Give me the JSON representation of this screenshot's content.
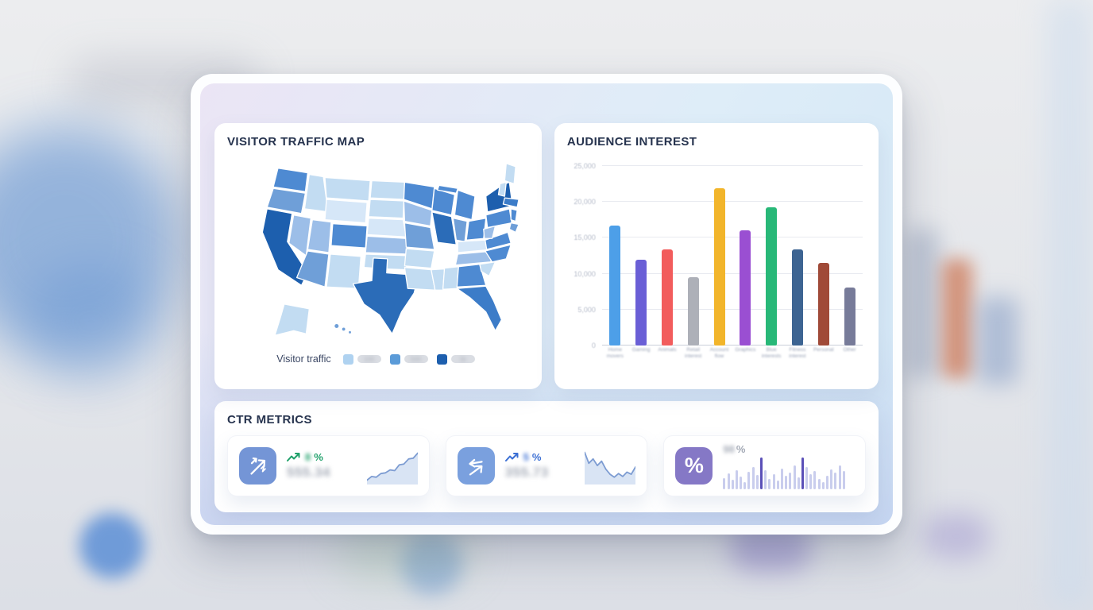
{
  "accent_colors": {
    "modal_gradient_start": "#EBE5F5",
    "modal_gradient_end": "#C9D5F0",
    "card_bg": "#FFFFFF"
  },
  "panels": {
    "traffic_map": {
      "title": "VISITOR TRAFFIC MAP",
      "legend": {
        "label": "Visitor traffic",
        "labels_blurred": true,
        "items": [
          {
            "color": "#AFD2F0",
            "label": "100"
          },
          {
            "color": "#5B9BD8",
            "label": "500"
          },
          {
            "color": "#1D5FAE",
            "label": "1k"
          }
        ]
      }
    },
    "audience": {
      "title": "AUDIENCE INTEREST"
    },
    "ctr": {
      "title": "CTR METRICS",
      "cards": [
        {
          "icon": "trend-arrows-up-icon",
          "icon_bg": "#7495D6",
          "trend_value": "8",
          "trend_unit": "%",
          "trend_color": "#1FA06A",
          "value": "555.34",
          "blurred": true,
          "spark": "ctr-spark-1"
        },
        {
          "icon": "arrows-exchange-icon",
          "icon_bg": "#7AA0DE",
          "trend_value": "5",
          "trend_unit": "%",
          "trend_color": "#3B6FD4",
          "value": "355.73",
          "blurred": true,
          "spark": "ctr-spark-2"
        },
        {
          "icon": "percent-icon",
          "icon_bg": "#8578C6",
          "value": "98",
          "value_unit": "%",
          "blurred": true,
          "spark": "ctr-minibars"
        }
      ]
    }
  },
  "chart_data": [
    {
      "name": "visitor-traffic-map",
      "type": "choropleth_map",
      "region": "United States",
      "title": "VISITOR TRAFFIC MAP",
      "legend_label": "Visitor traffic",
      "legend_tick_labels_note": "legend value labels are blurred/illegible in source",
      "shade_palette": [
        "#D6E7F8",
        "#C2DCF2",
        "#9CBEE8",
        "#6F9FD8",
        "#4E8AD2",
        "#3C7CC8",
        "#2B6CB8",
        "#1D5FAE"
      ],
      "darkest_states_visual": [
        "CA",
        "NY",
        "TX",
        "IL"
      ],
      "medium_states_visual": [
        "WA",
        "CO",
        "MN",
        "WI",
        "MI",
        "OH",
        "PA",
        "GA",
        "NC",
        "VA",
        "FL",
        "MA"
      ],
      "lightest_states_visual": [
        "MT",
        "ID",
        "WY",
        "NM",
        "ND",
        "SD",
        "NE",
        "OK",
        "AR",
        "LA",
        "MS",
        "AL",
        "KY",
        "ME",
        "AK"
      ]
    },
    {
      "name": "audience-interest",
      "type": "bar",
      "title": "AUDIENCE INTEREST",
      "categories": [
        "Home\nmovers",
        "Gaming",
        "Animals",
        "Retail\ninterest",
        "Account\nflow",
        "Graphics",
        "Blue\ninterests",
        "Fitness\ninterest",
        "Personal",
        "Other"
      ],
      "categories_note": "x-axis labels are blurred/illegible in source; strings approximate rendered shapes",
      "values": [
        16700,
        11900,
        13400,
        9500,
        21900,
        16000,
        19200,
        13400,
        11500,
        8100
      ],
      "colors": [
        "#4D9FE8",
        "#6A5FD6",
        "#F25C5C",
        "#ADB0B8",
        "#F2B52B",
        "#9A4FD2",
        "#28B878",
        "#3D6492",
        "#A04A38",
        "#777B99"
      ],
      "xlabel": "",
      "ylabel": "",
      "ylim": [
        0,
        25000
      ],
      "yticks": [
        0,
        5000,
        10000,
        15000,
        20000,
        25000
      ],
      "ytick_labels": [
        "0",
        "5,000",
        "10,000",
        "15,000",
        "20,000",
        "25,000"
      ],
      "grid": true,
      "legend": false
    },
    {
      "name": "ctr-spark-1",
      "type": "area",
      "trend": "rising",
      "points_y": [
        88,
        78,
        80,
        70,
        68,
        60,
        62,
        46,
        44,
        30,
        28,
        14
      ],
      "line_color": "#7D9CD2",
      "fill_color": "#D9E4F4"
    },
    {
      "name": "ctr-spark-2",
      "type": "area",
      "trend": "falling",
      "points_y": [
        12,
        42,
        30,
        48,
        36,
        58,
        72,
        80,
        70,
        78,
        66,
        72,
        52
      ],
      "line_color": "#7D9CD2",
      "fill_color": "#D9E4F4"
    },
    {
      "name": "ctr-minibars",
      "type": "bar",
      "values": [
        14,
        20,
        12,
        24,
        16,
        9,
        22,
        28,
        18,
        40,
        24,
        13,
        19,
        11,
        26,
        17,
        21,
        30,
        15,
        40,
        28,
        19,
        23,
        13,
        9,
        17,
        25,
        21,
        30,
        23
      ],
      "accent_indices": [
        9,
        19
      ],
      "base_color": "#C9CDED",
      "accent_color": "#5B50B8"
    }
  ]
}
